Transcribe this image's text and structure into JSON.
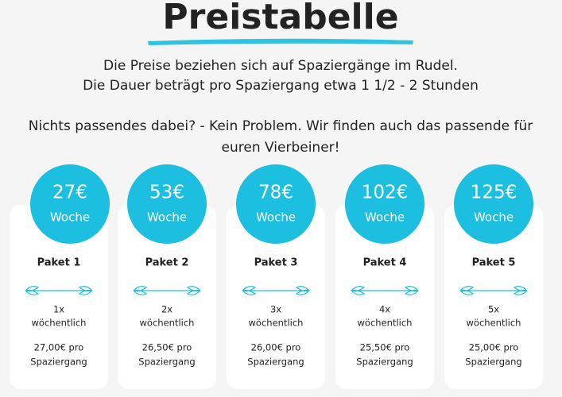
{
  "header": {
    "title": "Preistabelle",
    "intro": [
      "Die Preise beziehen sich auf Spaziergänge im Rudel.",
      "Die Dauer beträgt pro Spaziergang etwa 1 1/2 - 2 Stunden"
    ],
    "note": [
      "Nichts passendes dabei? - Kein Problem. Wir finden auch das passende für",
      "euren Vierbeiner!"
    ]
  },
  "packages": [
    {
      "price": "27€",
      "period": "Woche",
      "name": "Paket 1",
      "frequency": [
        "1x",
        "wöchentlich"
      ],
      "cost": [
        "27,00€ pro",
        "Spaziergang"
      ]
    },
    {
      "price": "53€",
      "period": "Woche",
      "name": "Paket 2",
      "frequency": [
        "2x",
        "wöchentlich"
      ],
      "cost": [
        "26,50€ pro",
        "Spaziergang"
      ]
    },
    {
      "price": "78€",
      "period": "Woche",
      "name": "Paket 3",
      "frequency": [
        "3x",
        "wöchentlich"
      ],
      "cost": [
        "26,00€ pro",
        "Spaziergang"
      ]
    },
    {
      "price": "102€",
      "period": "Woche",
      "name": "Paket 4",
      "frequency": [
        "4x",
        "wöchentlich"
      ],
      "cost": [
        "25,50€ pro",
        "Spaziergang"
      ]
    },
    {
      "price": "125€",
      "period": "Woche",
      "name": "Paket 5",
      "frequency": [
        "5x",
        "wöchentlich"
      ],
      "cost": [
        "25,00€ pro",
        "Spaziergang"
      ]
    }
  ]
}
